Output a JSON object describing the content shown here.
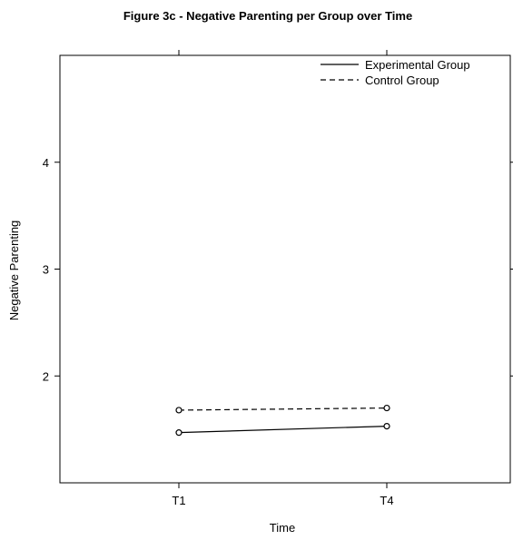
{
  "chart_data": {
    "type": "line",
    "title": "Figure 3c - Negative Parenting per Group over Time",
    "xlabel": "Time",
    "ylabel": "Negative Parenting",
    "categories": [
      "T1",
      "T4"
    ],
    "ylim": [
      1.0,
      5.0
    ],
    "yticks": [
      2,
      3,
      4
    ],
    "grid": false,
    "legend_position": "top-right",
    "series": [
      {
        "name": "Experimental Group",
        "values": [
          1.47,
          1.53
        ],
        "line_style": "solid",
        "marker": "open-circle",
        "color": "#000000"
      },
      {
        "name": "Control Group",
        "values": [
          1.68,
          1.7
        ],
        "line_style": "dashed",
        "marker": "open-circle",
        "color": "#000000"
      }
    ]
  }
}
